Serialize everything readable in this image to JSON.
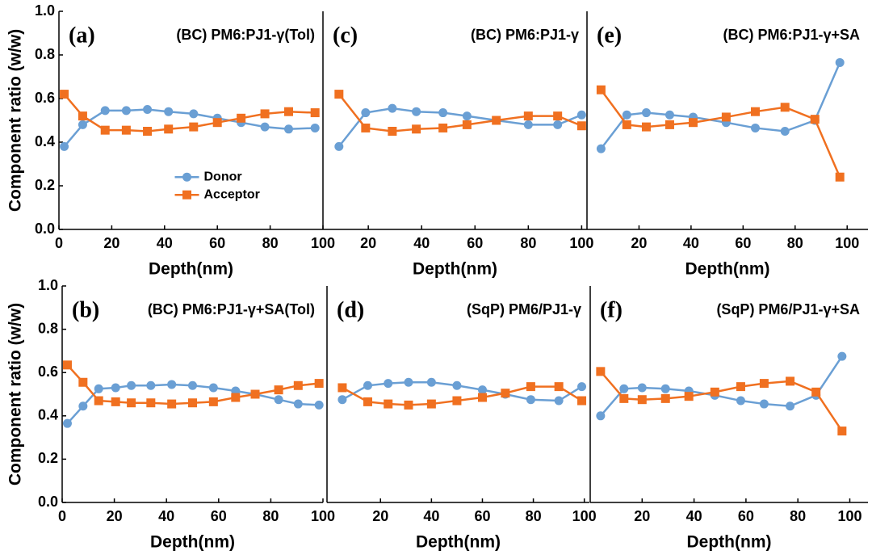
{
  "chart_data": [
    {
      "type": "line",
      "label": "(a)",
      "title": "(BC) PM6:PJ1-γ(Tol)",
      "x_label": "Depth(nm)",
      "y_label": "Component ratio (w/w)",
      "xlim": [
        0,
        100
      ],
      "xticks": [
        0,
        20,
        40,
        60,
        80,
        100
      ],
      "ylim": [
        0,
        1
      ],
      "yticks": [
        {
          "value": 0,
          "label": "0.0"
        },
        0.2,
        0.4,
        0.6,
        0.8,
        {
          "value": 1,
          "label": "1.0"
        }
      ],
      "legend": "center",
      "x": [
        2,
        9,
        17.5,
        25.5,
        33.5,
        41.5,
        51,
        60,
        69,
        78,
        87,
        97
      ],
      "series": [
        {
          "name": "Donor",
          "color": "#6a9fd4",
          "marker": "circle",
          "values": [
            0.38,
            0.48,
            0.545,
            0.545,
            0.55,
            0.54,
            0.53,
            0.51,
            0.49,
            0.47,
            0.46,
            0.465
          ]
        },
        {
          "name": "Acceptor",
          "color": "#f07020",
          "marker": "square",
          "values": [
            0.62,
            0.52,
            0.455,
            0.455,
            0.45,
            0.46,
            0.47,
            0.49,
            0.51,
            0.53,
            0.54,
            0.535
          ]
        }
      ]
    },
    {
      "type": "line",
      "label": "(c)",
      "title": "(BC) PM6:PJ1-γ",
      "x_label": "Depth(nm)",
      "xlim": [
        3,
        102
      ],
      "xticks": [
        20,
        40,
        60,
        80,
        100
      ],
      "ylim": [
        0,
        1
      ],
      "x": [
        9,
        19,
        29,
        38,
        48,
        57,
        68,
        80,
        91,
        100
      ],
      "series": [
        {
          "color": "#6a9fd4",
          "marker": "circle",
          "values": [
            0.38,
            0.535,
            0.555,
            0.54,
            0.535,
            0.52,
            0.5,
            0.48,
            0.48,
            0.525
          ]
        },
        {
          "color": "#f07020",
          "marker": "square",
          "values": [
            0.62,
            0.465,
            0.45,
            0.46,
            0.465,
            0.48,
            0.5,
            0.52,
            0.52,
            0.475
          ]
        }
      ]
    },
    {
      "type": "line",
      "label": "(e)",
      "title": "(BC) PM6:PJ1-γ+SA",
      "x_label": "Depth(nm)",
      "xlim": [
        0,
        108
      ],
      "xticks": [
        20,
        40,
        60,
        80,
        100
      ],
      "ylim": [
        0,
        1
      ],
      "x": [
        5.4,
        15.3,
        22.8,
        31.8,
        40.8,
        53.5,
        64.7,
        76.1,
        87.6,
        97.2
      ],
      "series": [
        {
          "color": "#6a9fd4",
          "marker": "circle",
          "values": [
            0.37,
            0.525,
            0.535,
            0.525,
            0.515,
            0.49,
            0.465,
            0.45,
            0.5,
            0.765
          ]
        },
        {
          "color": "#f07020",
          "marker": "square",
          "values": [
            0.64,
            0.48,
            0.47,
            0.48,
            0.49,
            0.515,
            0.54,
            0.56,
            0.505,
            0.24
          ]
        }
      ]
    },
    {
      "type": "line",
      "label": "(b)",
      "title": "(BC) PM6:PJ1-γ+SA(Tol)",
      "x_label": "Depth(nm)",
      "y_label": "Component ratio (w/w)",
      "xlim": [
        0,
        100
      ],
      "xticks": [
        0,
        20,
        40,
        60,
        80,
        100
      ],
      "ylim": [
        0,
        1
      ],
      "yticks": [
        {
          "value": 0,
          "label": "0.0"
        },
        0.2,
        0.4,
        0.6,
        0.8,
        {
          "value": 1,
          "label": "1.0"
        }
      ],
      "x": [
        2,
        8,
        14,
        20.5,
        26.5,
        34,
        42,
        50,
        58,
        66.5,
        74,
        83,
        90.5,
        98.5
      ],
      "series": [
        {
          "color": "#6a9fd4",
          "marker": "circle",
          "values": [
            0.365,
            0.445,
            0.525,
            0.53,
            0.54,
            0.54,
            0.545,
            0.54,
            0.53,
            0.515,
            0.5,
            0.475,
            0.455,
            0.45
          ]
        },
        {
          "color": "#f07020",
          "marker": "square",
          "values": [
            0.635,
            0.555,
            0.47,
            0.465,
            0.46,
            0.46,
            0.455,
            0.46,
            0.465,
            0.485,
            0.5,
            0.52,
            0.54,
            0.55
          ]
        }
      ]
    },
    {
      "type": "line",
      "label": "(d)",
      "title": "(SqP) PM6/PJ1-γ",
      "x_label": "Depth(nm)",
      "xlim": [
        -1,
        102
      ],
      "xticks": [
        20,
        40,
        60,
        80,
        100
      ],
      "ylim": [
        0,
        1
      ],
      "x": [
        5,
        15,
        23,
        31,
        40,
        50,
        60,
        69,
        79,
        90,
        99
      ],
      "series": [
        {
          "color": "#6a9fd4",
          "marker": "circle",
          "values": [
            0.475,
            0.54,
            0.55,
            0.555,
            0.555,
            0.54,
            0.52,
            0.5,
            0.475,
            0.47,
            0.535
          ]
        },
        {
          "color": "#f07020",
          "marker": "square",
          "values": [
            0.53,
            0.465,
            0.455,
            0.45,
            0.455,
            0.47,
            0.485,
            0.505,
            0.535,
            0.535,
            0.47
          ]
        }
      ]
    },
    {
      "type": "line",
      "label": "(f)",
      "title": "(SqP) PM6/PJ1-γ+SA",
      "x_label": "Depth(nm)",
      "xlim": [
        0,
        107
      ],
      "xticks": [
        20,
        40,
        60,
        80,
        100
      ],
      "ylim": [
        0,
        1
      ],
      "x": [
        4,
        13,
        20,
        29,
        38,
        48,
        58,
        67,
        77,
        87,
        97
      ],
      "series": [
        {
          "color": "#6a9fd4",
          "marker": "circle",
          "values": [
            0.4,
            0.525,
            0.53,
            0.525,
            0.515,
            0.495,
            0.47,
            0.455,
            0.445,
            0.495,
            0.675
          ]
        },
        {
          "color": "#f07020",
          "marker": "square",
          "values": [
            0.605,
            0.48,
            0.475,
            0.48,
            0.49,
            0.51,
            0.535,
            0.55,
            0.56,
            0.51,
            0.33
          ]
        }
      ]
    }
  ]
}
